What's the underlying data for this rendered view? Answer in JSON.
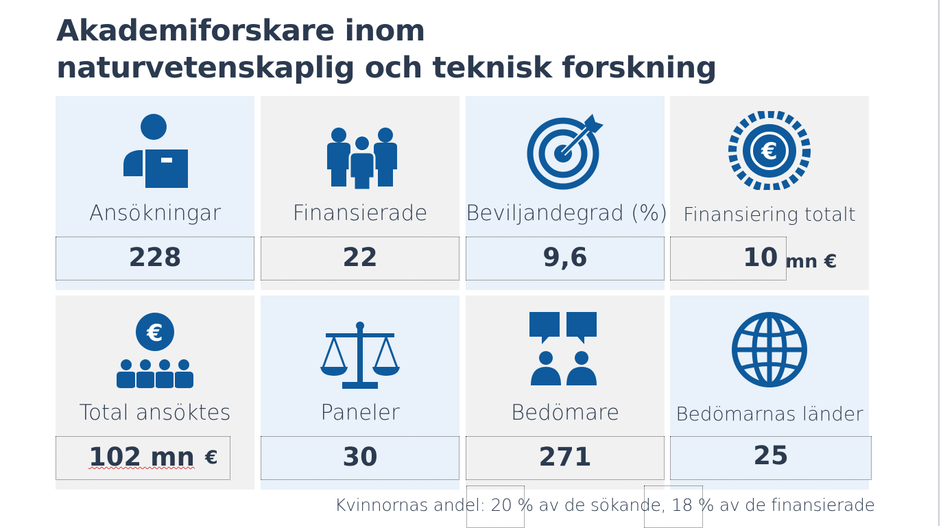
{
  "title": {
    "line1": "Akademiforskare inom",
    "line2": "naturvetenskaplig och teknisk forskning"
  },
  "colors": {
    "icon": "#0e5a9c",
    "text": "#2b3a4f",
    "tile_blue": "#e9f1fa",
    "tile_gray": "#f1f1f1"
  },
  "tiles": [
    {
      "icon": "person-with-box-icon",
      "label": "Ansökningar",
      "value": "228"
    },
    {
      "icon": "group-of-people-icon",
      "label": "Finansierade",
      "value": "22"
    },
    {
      "icon": "target-with-arrow-icon",
      "label": "Beviljandegrad (%)",
      "value": "9,6"
    },
    {
      "icon": "euro-coin-icon",
      "label": "Finansiering totalt",
      "value": "10",
      "unit": "mn €"
    },
    {
      "icon": "euro-people-icon",
      "label": "Total ansöktes",
      "value": "102 mn",
      "unit": "€"
    },
    {
      "icon": "scales-icon",
      "label": "Paneler",
      "value": "30"
    },
    {
      "icon": "reviewers-speech-icon",
      "label": "Bedömare",
      "value": "271"
    },
    {
      "icon": "globe-icon",
      "label": "Bedömarnas länder",
      "value": "25"
    }
  ],
  "footer": {
    "prefix": "Kvinnornas andel:",
    "pct1": "20 %",
    "mid": "av de sökande,",
    "pct2": "18 %",
    "suffix": "av de finansierade"
  }
}
